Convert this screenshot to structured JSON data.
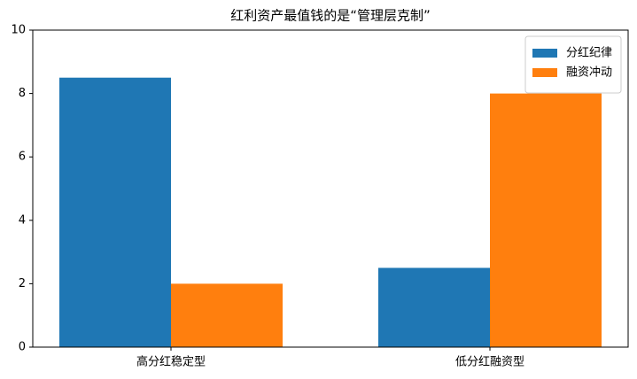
{
  "chart_data": {
    "type": "bar",
    "title": "红利资产最值钱的是“管理层克制”",
    "categories": [
      "高分红稳定型",
      "低分红融资型"
    ],
    "series": [
      {
        "name": "分红纪律",
        "color": "#1f77b4",
        "values": [
          8.5,
          2.5
        ]
      },
      {
        "name": "融资冲动",
        "color": "#ff7f0e",
        "values": [
          2,
          8
        ]
      }
    ],
    "ylim": [
      0,
      10
    ],
    "yticks": [
      0,
      2,
      4,
      6,
      8,
      10
    ],
    "legend": "upper right"
  }
}
